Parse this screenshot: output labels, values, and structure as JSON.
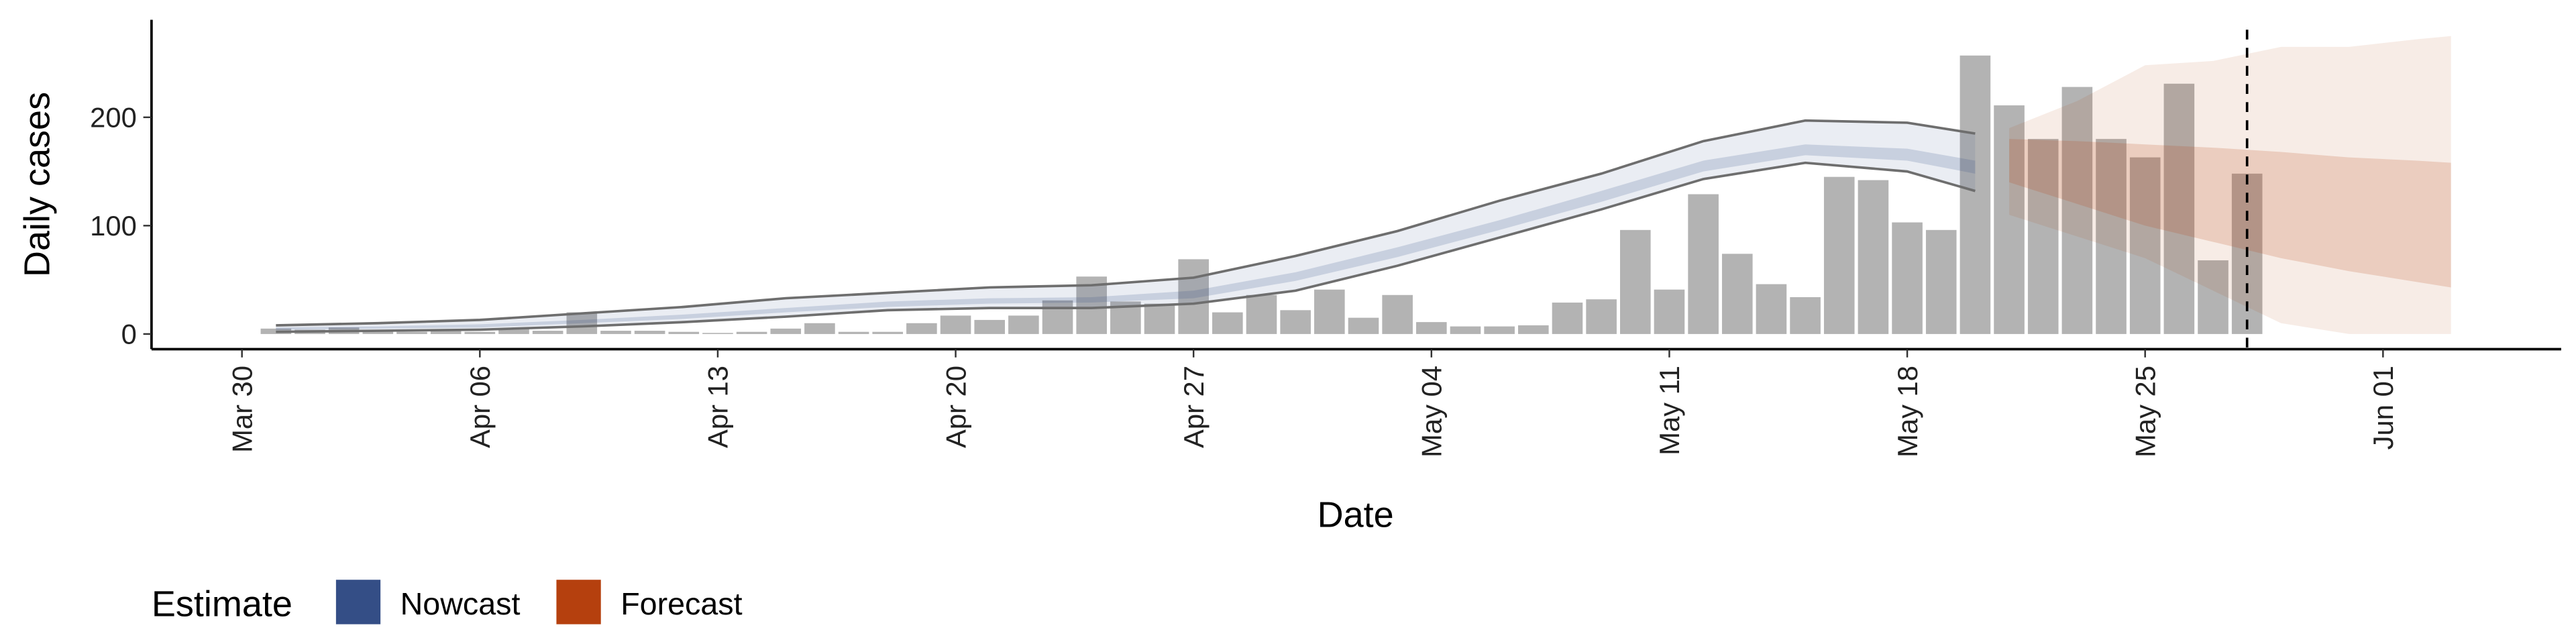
{
  "chart_data": {
    "type": "bar",
    "y_label": "Daily cases",
    "x_label": "Date",
    "x": [
      "Mar 31",
      "Apr 01",
      "Apr 02",
      "Apr 03",
      "Apr 04",
      "Apr 05",
      "Apr 06",
      "Apr 07",
      "Apr 08",
      "Apr 09",
      "Apr 10",
      "Apr 11",
      "Apr 12",
      "Apr 13",
      "Apr 14",
      "Apr 15",
      "Apr 16",
      "Apr 17",
      "Apr 18",
      "Apr 19",
      "Apr 20",
      "Apr 21",
      "Apr 22",
      "Apr 23",
      "Apr 24",
      "Apr 25",
      "Apr 26",
      "Apr 27",
      "Apr 28",
      "Apr 29",
      "Apr 30",
      "May 01",
      "May 02",
      "May 03",
      "May 04",
      "May 05",
      "May 06",
      "May 07",
      "May 08",
      "May 09",
      "May 10",
      "May 11",
      "May 12",
      "May 13",
      "May 14",
      "May 15",
      "May 16",
      "May 17",
      "May 18",
      "May 19",
      "May 20",
      "May 21",
      "May 22",
      "May 23",
      "May 24",
      "May 25",
      "May 26",
      "May 27",
      "May 28"
    ],
    "values": [
      5,
      4,
      6,
      3,
      2,
      3,
      2,
      5,
      3,
      20,
      3,
      3,
      2,
      1,
      2,
      5,
      10,
      2,
      2,
      10,
      17,
      13,
      17,
      31,
      53,
      30,
      28,
      69,
      20,
      36,
      22,
      41,
      15,
      36,
      11,
      7,
      7,
      8,
      29,
      32,
      96,
      41,
      129,
      74,
      46,
      34,
      145,
      142,
      103,
      96,
      257,
      211,
      180,
      228,
      180,
      163,
      231,
      68,
      148
    ],
    "color": "#b3b3b3",
    "ribbons": [
      {
        "name": "Nowcast",
        "color": "#344e86",
        "outline_color": "#6e6e6e",
        "x": [
          "Mar 31",
          "Apr 03",
          "Apr 06",
          "Apr 09",
          "Apr 12",
          "Apr 15",
          "Apr 18",
          "Apr 21",
          "Apr 24",
          "Apr 27",
          "Apr 30",
          "May 03",
          "May 06",
          "May 09",
          "May 12",
          "May 15",
          "May 18",
          "May 20"
        ],
        "upper_90": [
          8,
          10,
          13,
          19,
          25,
          33,
          38,
          43,
          45,
          52,
          72,
          95,
          123,
          148,
          178,
          197,
          195,
          185
        ],
        "lower_90": [
          2,
          3,
          4,
          7,
          11,
          16,
          22,
          24,
          24,
          28,
          40,
          63,
          89,
          115,
          143,
          158,
          150,
          132
        ],
        "upper_50": [
          6,
          7,
          9,
          13,
          18,
          24,
          30,
          33,
          34,
          40,
          57,
          80,
          105,
          132,
          160,
          175,
          171,
          160
        ],
        "lower_50": [
          4,
          5,
          6,
          10,
          14,
          20,
          25,
          28,
          29,
          33,
          49,
          71,
          96,
          122,
          150,
          165,
          160,
          148
        ]
      },
      {
        "name": "Forecast",
        "color": "#b5400e",
        "x": [
          "May 21",
          "May 23",
          "May 25",
          "May 27",
          "May 29",
          "May 31",
          "Jun 02",
          "Jun 03"
        ],
        "upper_90": [
          190,
          215,
          248,
          252,
          265,
          265,
          272,
          275
        ],
        "lower_90": [
          110,
          90,
          70,
          40,
          10,
          0,
          0,
          0
        ],
        "upper_50": [
          180,
          178,
          175,
          172,
          168,
          163,
          160,
          158
        ],
        "lower_50": [
          140,
          120,
          100,
          85,
          70,
          58,
          48,
          43
        ]
      }
    ],
    "legend_title": "Estimate",
    "vline": "May 28",
    "xlim": [
      "Mar 27",
      "Jun 06"
    ],
    "xticks": [
      "Mar 30",
      "Apr 06",
      "Apr 13",
      "Apr 20",
      "Apr 27",
      "May 04",
      "May 11",
      "May 18",
      "May 25",
      "Jun 01"
    ],
    "ylim": [
      -14,
      290
    ],
    "yticks": [
      0,
      100,
      200
    ]
  }
}
